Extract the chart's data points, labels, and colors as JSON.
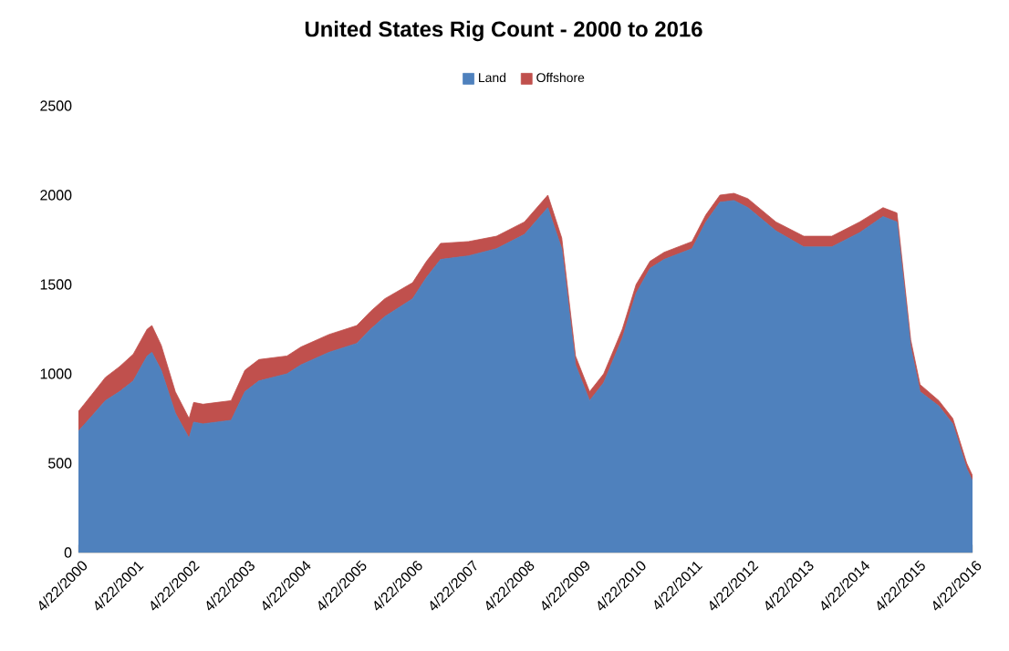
{
  "chart_data": {
    "type": "area",
    "stacked": true,
    "title": "United States Rig Count - 2000 to 2016",
    "x": [
      "2000-04-22",
      "2000-07-15",
      "2000-10-15",
      "2001-01-15",
      "2001-04-15",
      "2001-07-15",
      "2001-08-15",
      "2001-10-15",
      "2002-01-15",
      "2002-04-15",
      "2002-05-15",
      "2002-07-15",
      "2002-10-15",
      "2003-01-15",
      "2003-04-15",
      "2003-07-15",
      "2004-01-15",
      "2004-04-15",
      "2004-10-15",
      "2005-04-15",
      "2005-07-15",
      "2005-10-15",
      "2006-04-15",
      "2006-07-15",
      "2006-10-15",
      "2007-04-15",
      "2007-10-15",
      "2008-04-15",
      "2008-09-15",
      "2008-12-15",
      "2009-03-15",
      "2009-06-15",
      "2009-09-15",
      "2010-01-15",
      "2010-04-15",
      "2010-07-15",
      "2010-10-15",
      "2011-04-15",
      "2011-07-15",
      "2011-10-15",
      "2012-01-15",
      "2012-04-15",
      "2012-10-15",
      "2013-04-15",
      "2013-10-15",
      "2014-04-15",
      "2014-09-15",
      "2014-12-15",
      "2015-03-15",
      "2015-05-15",
      "2015-09-15",
      "2015-12-15",
      "2016-03-15",
      "2016-04-22"
    ],
    "series": [
      {
        "name": "Land",
        "color": "#4f81bd",
        "values": [
          680,
          760,
          850,
          900,
          960,
          1100,
          1120,
          1020,
          780,
          640,
          730,
          720,
          730,
          740,
          900,
          960,
          1000,
          1050,
          1120,
          1170,
          1250,
          1320,
          1420,
          1540,
          1640,
          1660,
          1700,
          1780,
          1930,
          1700,
          1050,
          850,
          950,
          1200,
          1450,
          1590,
          1640,
          1700,
          1850,
          1960,
          1970,
          1930,
          1800,
          1710,
          1710,
          1790,
          1880,
          1850,
          1150,
          900,
          820,
          720,
          470,
          400
        ]
      },
      {
        "name": "Offshore",
        "color": "#c0504d",
        "values": [
          110,
          120,
          130,
          140,
          150,
          150,
          150,
          140,
          120,
          110,
          110,
          110,
          110,
          110,
          120,
          120,
          100,
          100,
          100,
          100,
          100,
          100,
          90,
          90,
          90,
          80,
          70,
          70,
          70,
          60,
          50,
          50,
          50,
          50,
          50,
          40,
          40,
          40,
          40,
          40,
          40,
          50,
          50,
          60,
          60,
          60,
          50,
          50,
          40,
          40,
          30,
          30,
          30,
          30
        ]
      }
    ],
    "xlim": [
      "2000-04-22",
      "2016-04-22"
    ],
    "xticks": [
      {
        "value": "2000-04-22",
        "label": "4/22/2000"
      },
      {
        "value": "2001-04-22",
        "label": "4/22/2001"
      },
      {
        "value": "2002-04-22",
        "label": "4/22/2002"
      },
      {
        "value": "2003-04-22",
        "label": "4/22/2003"
      },
      {
        "value": "2004-04-22",
        "label": "4/22/2004"
      },
      {
        "value": "2005-04-22",
        "label": "4/22/2005"
      },
      {
        "value": "2006-04-22",
        "label": "4/22/2006"
      },
      {
        "value": "2007-04-22",
        "label": "4/22/2007"
      },
      {
        "value": "2008-04-22",
        "label": "4/22/2008"
      },
      {
        "value": "2009-04-22",
        "label": "4/22/2009"
      },
      {
        "value": "2010-04-22",
        "label": "4/22/2010"
      },
      {
        "value": "2011-04-22",
        "label": "4/22/2011"
      },
      {
        "value": "2012-04-22",
        "label": "4/22/2012"
      },
      {
        "value": "2013-04-22",
        "label": "4/22/2013"
      },
      {
        "value": "2014-04-22",
        "label": "4/22/2014"
      },
      {
        "value": "2015-04-22",
        "label": "4/22/2015"
      },
      {
        "value": "2016-04-22",
        "label": "4/22/2016"
      }
    ],
    "ylim": [
      0,
      2500
    ],
    "yticks": [
      0,
      500,
      1000,
      1500,
      2000,
      2500
    ],
    "legend": "top"
  }
}
